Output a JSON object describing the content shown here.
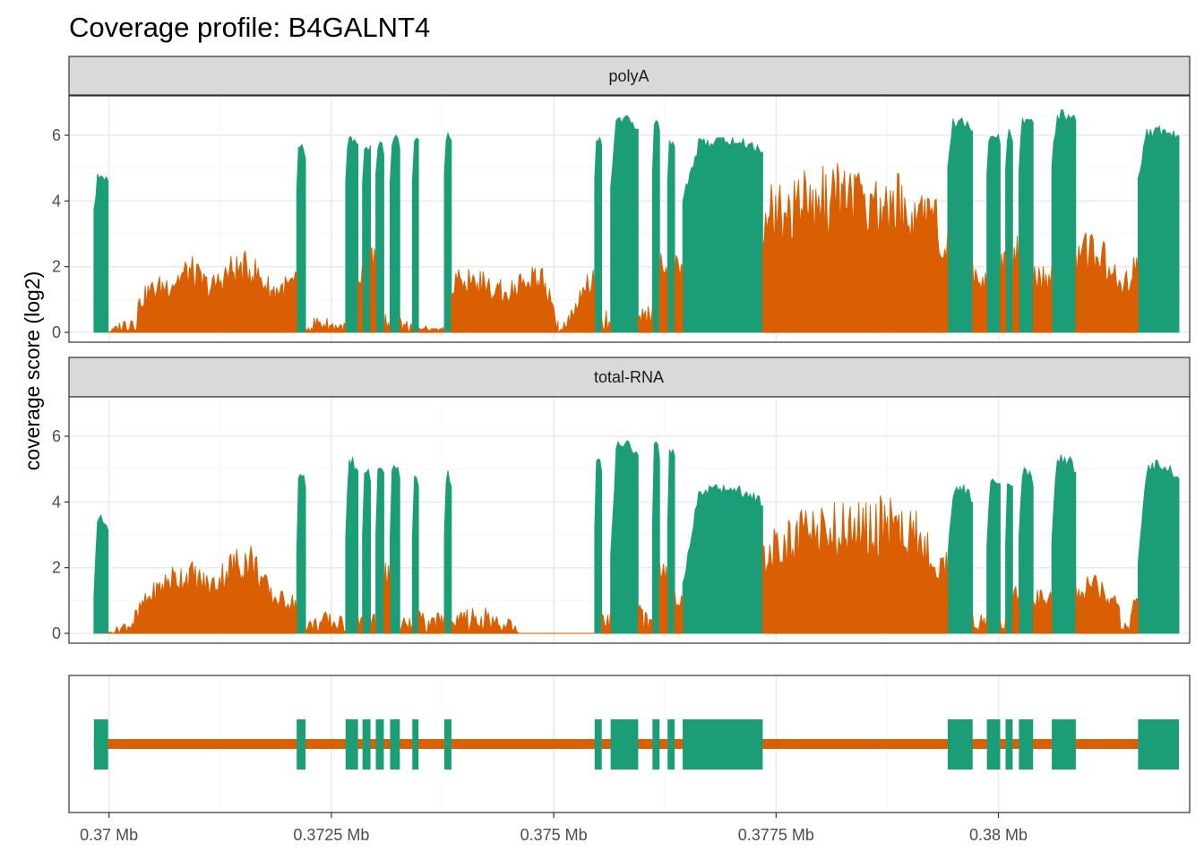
{
  "chart_data": {
    "type": "area",
    "title": "Coverage profile: B4GALNT4",
    "ylabel": "coverage score (log2)",
    "xlabel": "",
    "xlim": [
      0.36955,
      0.38215
    ],
    "ylim": [
      -0.3,
      7.2
    ],
    "grid": true,
    "x_unit": "Mb",
    "x_ticks": [
      0.37,
      0.3725,
      0.375,
      0.3775,
      0.38
    ],
    "x_tick_labels": [
      "0.37 Mb",
      "0.3725 Mb",
      "0.375 Mb",
      "0.3775 Mb",
      "0.38 Mb"
    ],
    "y_ticks": [
      0,
      2,
      4,
      6
    ],
    "y_tick_labels": [
      "0",
      "2",
      "4",
      "6"
    ],
    "colors": {
      "exon": "#1b9e77",
      "intron": "#d95f02"
    },
    "exons": [
      [
        0.36983,
        0.36999
      ],
      [
        0.37211,
        0.37221
      ],
      [
        0.37266,
        0.3728
      ],
      [
        0.37285,
        0.37294
      ],
      [
        0.373,
        0.37309
      ],
      [
        0.37316,
        0.37327
      ],
      [
        0.37341,
        0.37348
      ],
      [
        0.37377,
        0.37385
      ],
      [
        0.37546,
        0.37554
      ],
      [
        0.37564,
        0.37595
      ],
      [
        0.37611,
        0.37619
      ],
      [
        0.37628,
        0.37636
      ],
      [
        0.37645,
        0.37735
      ],
      [
        0.37943,
        0.37971
      ],
      [
        0.37987,
        0.38002
      ],
      [
        0.38008,
        0.38016
      ],
      [
        0.38023,
        0.38039
      ],
      [
        0.3806,
        0.38087
      ],
      [
        0.38157,
        0.38203
      ]
    ],
    "panels": [
      {
        "label": "polyA",
        "exon_max": [
          4.9,
          5.8,
          6.0,
          5.9,
          5.9,
          6.1,
          6.1,
          6.2,
          6.1,
          6.7,
          6.6,
          6.0,
          6.0,
          6.6,
          6.2,
          6.2,
          6.7,
          6.8,
          6.3
        ],
        "exon_min": [
          3.2,
          4.0,
          4.3,
          4.3,
          4.3,
          4.3,
          4.3,
          4.3,
          4.3,
          3.5,
          4.3,
          4.3,
          3.5,
          4.6,
          4.6,
          4.6,
          4.6,
          4.6,
          4.3
        ],
        "introns": [
          {
            "x": [
              0.36999,
              0.37022,
              0.37045,
              0.37068,
              0.37091,
              0.37114,
              0.37137,
              0.3716,
              0.37183,
              0.37211
            ],
            "y": [
              0.0,
              0.6,
              1.6,
              1.9,
              2.4,
              1.7,
              2.4,
              2.5,
              1.6,
              1.9
            ]
          },
          {
            "x": [
              0.37221,
              0.37235,
              0.3725,
              0.37266
            ],
            "y": [
              0.2,
              0.6,
              0.4,
              0.3
            ]
          },
          {
            "x": [
              0.3728,
              0.37285
            ],
            "y": [
              2.1,
              2.2
            ]
          },
          {
            "x": [
              0.37294,
              0.373
            ],
            "y": [
              2.8,
              3.0
            ]
          },
          {
            "x": [
              0.37309,
              0.37316
            ],
            "y": [
              0.6,
              0.5
            ]
          },
          {
            "x": [
              0.37327,
              0.37341
            ],
            "y": [
              0.5,
              0.4
            ]
          },
          {
            "x": [
              0.37348,
              0.37377
            ],
            "y": [
              0.2,
              0.2
            ]
          },
          {
            "x": [
              0.37385,
              0.37405,
              0.37425,
              0.37445,
              0.37465,
              0.37485,
              0.37505
            ],
            "y": [
              2.0,
              2.1,
              1.8,
              1.6,
              1.9,
              2.3,
              0.6
            ]
          },
          {
            "x": [
              0.37505,
              0.37527,
              0.37546
            ],
            "y": [
              0.0,
              1.2,
              2.2
            ]
          },
          {
            "x": [
              0.37554,
              0.37564
            ],
            "y": [
              1.0,
              0.9
            ]
          },
          {
            "x": [
              0.37595,
              0.37611
            ],
            "y": [
              0.8,
              0.8
            ]
          },
          {
            "x": [
              0.37619,
              0.37628
            ],
            "y": [
              2.6,
              2.6
            ]
          },
          {
            "x": [
              0.37636,
              0.37645
            ],
            "y": [
              2.9,
              2.9
            ]
          },
          {
            "x": [
              0.37735,
              0.3776,
              0.37785,
              0.3781,
              0.37835,
              0.3786,
              0.37885,
              0.3791,
              0.37943
            ],
            "y": [
              4.4,
              4.7,
              5.0,
              5.2,
              5.4,
              5.1,
              4.9,
              4.8,
              3.8
            ]
          },
          {
            "x": [
              0.37971,
              0.37987
            ],
            "y": [
              2.3,
              2.2
            ]
          },
          {
            "x": [
              0.38002,
              0.38008
            ],
            "y": [
              2.9,
              2.8
            ]
          },
          {
            "x": [
              0.38016,
              0.38023
            ],
            "y": [
              3.0,
              3.0
            ]
          },
          {
            "x": [
              0.38039,
              0.3806
            ],
            "y": [
              2.2,
              2.1
            ]
          },
          {
            "x": [
              0.38087,
              0.38105,
              0.38125,
              0.3814,
              0.38157
            ],
            "y": [
              3.0,
              3.2,
              2.6,
              1.6,
              2.8
            ]
          }
        ]
      },
      {
        "label": "total-RNA",
        "exon_max": [
          3.7,
          5.0,
          5.4,
          5.2,
          5.3,
          5.2,
          5.0,
          5.0,
          5.4,
          6.0,
          5.9,
          5.8,
          4.6,
          4.6,
          4.9,
          4.9,
          5.1,
          5.5,
          5.3
        ],
        "exon_min": [
          0.0,
          1.5,
          2.2,
          2.3,
          2.3,
          2.3,
          2.3,
          2.3,
          2.3,
          1.0,
          2.5,
          2.5,
          0.4,
          1.4,
          1.8,
          1.8,
          2.0,
          1.8,
          1.2
        ],
        "introns": [
          {
            "x": [
              0.36999,
              0.37022,
              0.37045,
              0.37068,
              0.37091,
              0.37114,
              0.37137,
              0.3716,
              0.37183,
              0.37211
            ],
            "y": [
              0.0,
              0.5,
              1.4,
              2.1,
              2.3,
              1.8,
              2.6,
              2.9,
              1.4,
              1.2
            ]
          },
          {
            "x": [
              0.37221,
              0.37245,
              0.37266
            ],
            "y": [
              0.4,
              0.7,
              0.5
            ]
          },
          {
            "x": [
              0.3728,
              0.37285
            ],
            "y": [
              0.5,
              0.5
            ]
          },
          {
            "x": [
              0.37294,
              0.373
            ],
            "y": [
              0.6,
              0.6
            ]
          },
          {
            "x": [
              0.37309,
              0.37316
            ],
            "y": [
              2.2,
              2.4
            ]
          },
          {
            "x": [
              0.37327,
              0.37341
            ],
            "y": [
              0.6,
              0.5
            ]
          },
          {
            "x": [
              0.37348,
              0.37377
            ],
            "y": [
              0.7,
              0.6
            ]
          },
          {
            "x": [
              0.37385,
              0.37405,
              0.37425,
              0.37445,
              0.3746
            ],
            "y": [
              0.6,
              0.9,
              0.8,
              0.5,
              0.4
            ]
          },
          {
            "x": [
              0.3746,
              0.37546
            ],
            "y": [
              0.0,
              0.0
            ]
          },
          {
            "x": [
              0.37554,
              0.37564
            ],
            "y": [
              0.7,
              0.7
            ]
          },
          {
            "x": [
              0.37595,
              0.37611
            ],
            "y": [
              0.9,
              0.9
            ]
          },
          {
            "x": [
              0.37619,
              0.37628
            ],
            "y": [
              2.3,
              2.3
            ]
          },
          {
            "x": [
              0.37636,
              0.37645
            ],
            "y": [
              1.4,
              1.3
            ]
          },
          {
            "x": [
              0.37735,
              0.3776,
              0.37785,
              0.3781,
              0.37835,
              0.3786,
              0.37885,
              0.3791,
              0.37943
            ],
            "y": [
              2.8,
              3.6,
              3.9,
              4.0,
              4.0,
              4.3,
              4.1,
              3.8,
              2.4
            ]
          },
          {
            "x": [
              0.37971,
              0.37987
            ],
            "y": [
              0.7,
              0.6
            ]
          },
          {
            "x": [
              0.38002,
              0.38008
            ],
            "y": [
              0.7,
              0.7
            ]
          },
          {
            "x": [
              0.38016,
              0.38023
            ],
            "y": [
              1.4,
              1.5
            ]
          },
          {
            "x": [
              0.38039,
              0.3806
            ],
            "y": [
              1.3,
              1.6
            ]
          },
          {
            "x": [
              0.38087,
              0.38105,
              0.38125,
              0.38145,
              0.38157
            ],
            "y": [
              1.6,
              1.9,
              1.5,
              0.4,
              1.6
            ]
          }
        ]
      }
    ]
  }
}
